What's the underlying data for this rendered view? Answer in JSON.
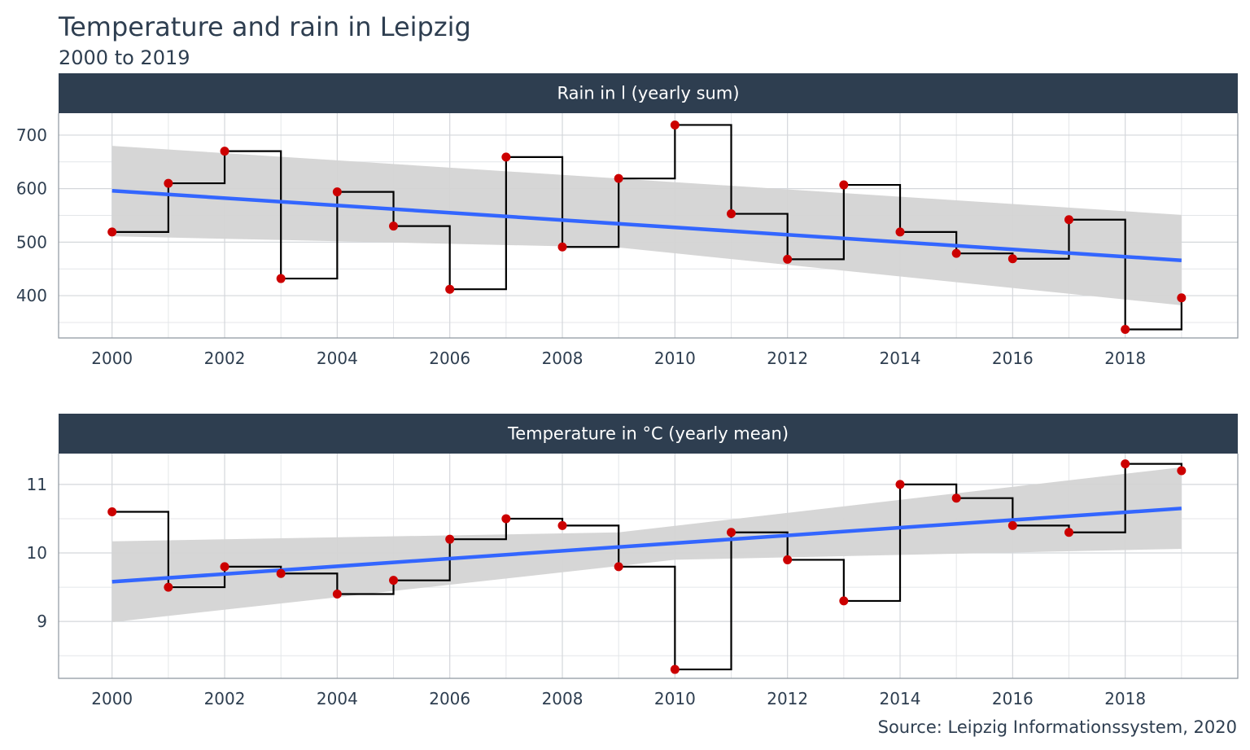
{
  "title": "Temperature and rain in Leipzig",
  "subtitle": "2000 to 2019",
  "caption": "Source: Leipzig Informationssystem, 2020",
  "colors": {
    "strip": "#2e3e50",
    "point": "#cc0000",
    "step_line": "#000000",
    "trend_line": "#3366ff",
    "band": "#d4d4d4"
  },
  "chart_data": [
    {
      "type": "line",
      "panel_title": "Rain in l (yearly sum)",
      "x": [
        2000,
        2001,
        2002,
        2003,
        2004,
        2005,
        2006,
        2007,
        2008,
        2009,
        2010,
        2011,
        2012,
        2013,
        2014,
        2015,
        2016,
        2017,
        2018,
        2019
      ],
      "values": [
        519,
        610,
        670,
        432,
        594,
        530,
        412,
        659,
        491,
        619,
        719,
        553,
        468,
        607,
        519,
        479,
        469,
        542,
        337,
        396
      ],
      "trend": {
        "start": [
          2000,
          596
        ],
        "end": [
          2019,
          466
        ]
      },
      "band": {
        "upper": [
          [
            2000,
            680
          ],
          [
            2019,
            551
          ]
        ],
        "lower": [
          [
            2000,
            511
          ],
          [
            2009,
            490
          ],
          [
            2019,
            382
          ]
        ]
      },
      "xlim": [
        1999.05,
        2020.0
      ],
      "ylim": [
        321,
        741
      ],
      "x_ticks": [
        2000,
        2002,
        2004,
        2006,
        2008,
        2010,
        2012,
        2014,
        2016,
        2018
      ],
      "y_ticks": [
        400,
        500,
        600,
        700
      ],
      "grid": true
    },
    {
      "type": "line",
      "panel_title": "Temperature in °C (yearly mean)",
      "x": [
        2000,
        2001,
        2002,
        2003,
        2004,
        2005,
        2006,
        2007,
        2008,
        2009,
        2010,
        2011,
        2012,
        2013,
        2014,
        2015,
        2016,
        2017,
        2018,
        2019
      ],
      "values": [
        10.6,
        9.5,
        9.8,
        9.7,
        9.4,
        9.6,
        10.2,
        10.5,
        10.4,
        9.8,
        8.3,
        10.3,
        9.9,
        9.3,
        11.0,
        10.8,
        10.4,
        10.3,
        11.3,
        11.2
      ],
      "trend": {
        "start": [
          2000,
          9.58
        ],
        "end": [
          2019,
          10.65
        ]
      },
      "band": {
        "upper": [
          [
            2000,
            10.17
          ],
          [
            2009,
            10.3
          ],
          [
            2019,
            11.25
          ]
        ],
        "lower": [
          [
            2000,
            8.99
          ],
          [
            2010,
            9.9
          ],
          [
            2019,
            10.06
          ]
        ]
      },
      "xlim": [
        1999.05,
        2020.0
      ],
      "ylim": [
        8.17,
        11.45
      ],
      "x_ticks": [
        2000,
        2002,
        2004,
        2006,
        2008,
        2010,
        2012,
        2014,
        2016,
        2018
      ],
      "y_ticks": [
        9,
        10,
        11
      ],
      "grid": true
    }
  ]
}
